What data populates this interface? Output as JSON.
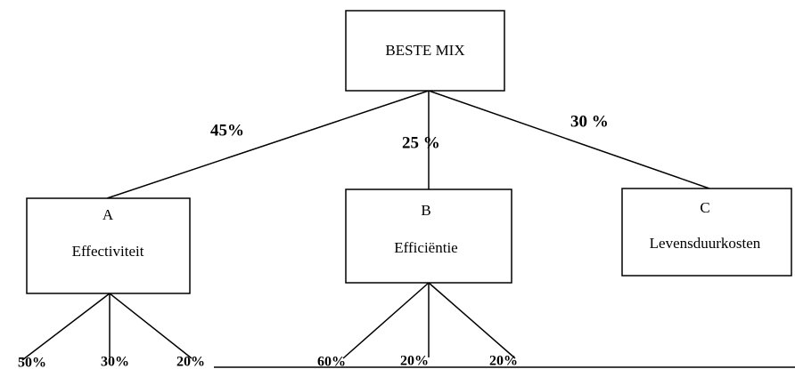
{
  "nodes": [
    {
      "label": "BESTE MIX"
    },
    {
      "letter": "A",
      "label": "Effectiviteit"
    },
    {
      "letter": "B",
      "label": "Efficiëntie"
    },
    {
      "letter": "C",
      "label": "Levensduurkosten"
    }
  ],
  "weights": [
    "45%",
    "25 %",
    "30 %"
  ],
  "sub_weights": {
    "A": [
      "50%",
      "30%",
      "20%"
    ],
    "B": [
      "60%",
      "20%",
      "20%"
    ]
  }
}
